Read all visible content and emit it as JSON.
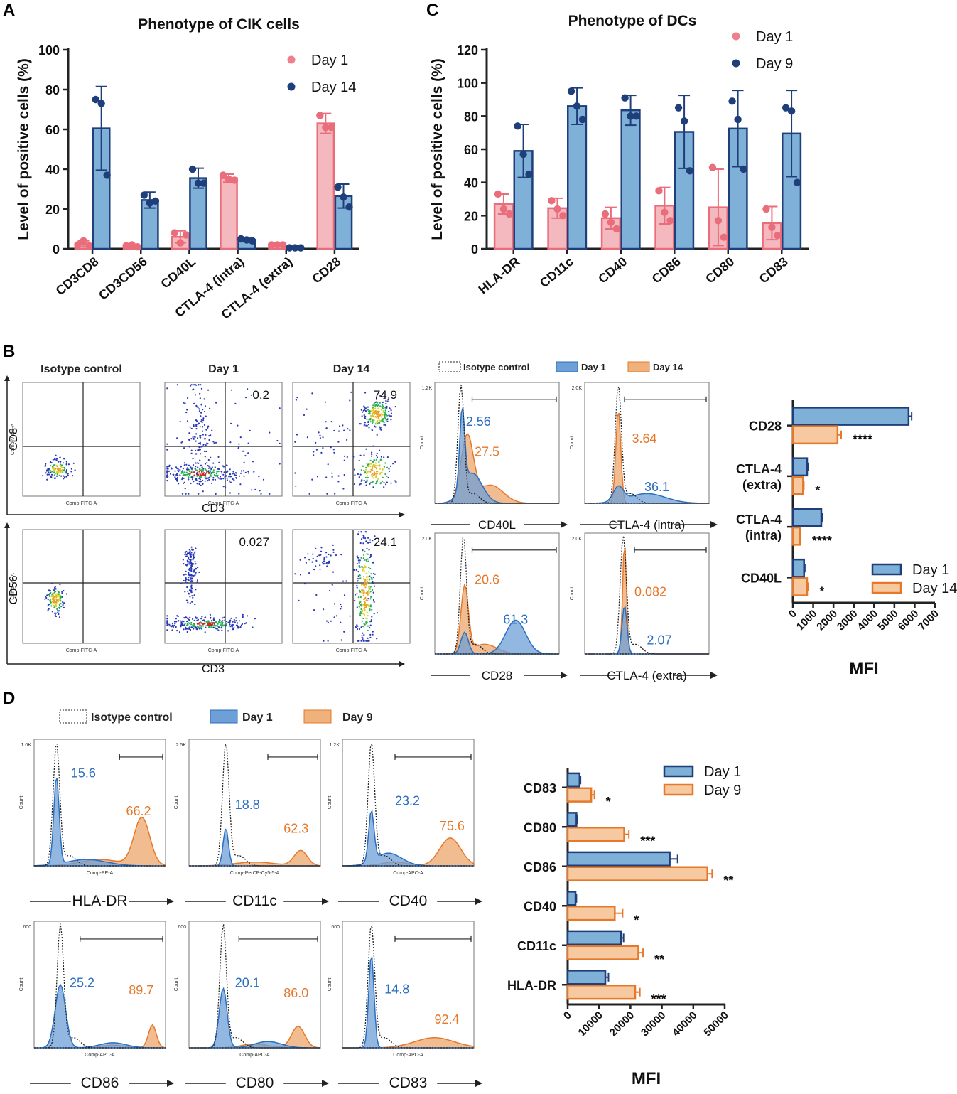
{
  "colors": {
    "day1_pink": "#f4b8bf",
    "day1_pink_edge": "#ea6d7b",
    "blue_fill": "#7fb0d8",
    "blue_edge": "#1f3f7a",
    "orange_fill": "#f6c9a1",
    "orange_edge": "#e6782a",
    "hist_blue": "#6e9fd6",
    "hist_orange": "#efb27c",
    "dot_blue": "#2a4fa0",
    "dot_orange": "#e37a2c"
  },
  "panel_labels": {
    "a": "A",
    "b": "B",
    "c": "C",
    "d": "D"
  },
  "flow": {
    "cik_density": [
      {
        "title": "Isotype control",
        "value": "",
        "xlabel": "Comp-FITC-A",
        "ylabel": "Comp-V450-A"
      },
      {
        "title": "Day 1",
        "value": "0.2",
        "xlabel": "Comp-FITC-A",
        "ylabel": ""
      },
      {
        "title": "Day 14",
        "value": "74.9",
        "xlabel": "Comp-FITC-A",
        "ylabel": ""
      },
      {
        "title": "",
        "value": "",
        "xlabel": "Comp-FITC-A",
        "ylabel": "Comp-PE-A"
      },
      {
        "title": "",
        "value": "0.027",
        "xlabel": "Comp-FITC-A",
        "ylabel": ""
      },
      {
        "title": "",
        "value": "24.1",
        "xlabel": "Comp-FITC-A",
        "ylabel": ""
      }
    ],
    "cik_axis_labels": {
      "x": "CD3",
      "y_top": "CD8",
      "y_bottom": "CD56"
    },
    "cik_hist_legend": {
      "iso": "Isotype control",
      "d1": "Day 1",
      "d2": "Day 14"
    },
    "cik_hist": [
      {
        "marker": "CD40L",
        "blue": "2.56",
        "orange": "27.5",
        "ymax": "1.2K"
      },
      {
        "marker": "CTLA-4 (intra)",
        "blue": "36.1",
        "orange": "3.64",
        "ymax": "2.0K"
      },
      {
        "marker": "CD28",
        "blue": "61.3",
        "orange": "20.6",
        "ymax": "2.0K"
      },
      {
        "marker": "CTLA-4 (extra)",
        "blue": "2.07",
        "orange": "0.082",
        "ymax": "2.0K"
      }
    ],
    "dc_hist_legend": {
      "iso": "Isotype control",
      "d1": "Day 1",
      "d2": "Day 9"
    },
    "dc_hist": [
      {
        "marker": "HLA-DR",
        "comp": "Comp-PE-A",
        "blue": "15.6",
        "orange": "66.2",
        "ymax": "1.0K"
      },
      {
        "marker": "CD11c",
        "comp": "Comp-PerCP-Cy5-5-A",
        "blue": "18.8",
        "orange": "62.3",
        "ymax": "2.5K"
      },
      {
        "marker": "CD40",
        "comp": "Comp-APC-A",
        "blue": "23.2",
        "orange": "75.6",
        "ymax": "1.2K"
      },
      {
        "marker": "CD86",
        "comp": "Comp-APC-A",
        "blue": "25.2",
        "orange": "89.7",
        "ymax": "600"
      },
      {
        "marker": "CD80",
        "comp": "Comp-APC-A",
        "blue": "20.1",
        "orange": "86.0",
        "ymax": "600"
      },
      {
        "marker": "CD83",
        "comp": "Comp-APC-A",
        "blue": "14.8",
        "orange": "92.4",
        "ymax": "600"
      }
    ],
    "count_label": "Count",
    "arrow_glyph": "→"
  },
  "chart_data": [
    {
      "id": "A",
      "type": "bar",
      "title": "Phenotype of CIK cells",
      "xlabel": "",
      "ylabel": "Level of positive cells (%)",
      "ylim": [
        0,
        100
      ],
      "yticks": [
        0,
        20,
        40,
        60,
        80,
        100
      ],
      "categories": [
        "CD3CD8",
        "CD3CD56",
        "CD40L",
        "CTLA-4 (intra)",
        "CTLA-4 (extra)",
        "CD28"
      ],
      "series": [
        {
          "name": "Day 1",
          "values": [
            2.5,
            1.5,
            6,
            35.5,
            2,
            63
          ],
          "err": [
            1.5,
            0.8,
            3,
            2,
            0.5,
            5
          ],
          "points": [
            [
              2,
              4,
              1.5
            ],
            [
              1.5,
              2,
              1
            ],
            [
              8,
              3,
              7
            ],
            [
              37,
              35,
              34.5
            ],
            [
              2,
              2,
              2
            ],
            [
              67,
              61,
              61
            ]
          ]
        },
        {
          "name": "Day 14",
          "values": [
            60.5,
            24.5,
            35.5,
            4.5,
            0.5,
            26.5
          ],
          "err": [
            21,
            4,
            5,
            0.8,
            0.3,
            6
          ],
          "points": [
            [
              75,
              73,
              37
            ],
            [
              27,
              23,
              24
            ],
            [
              40,
              33,
              33
            ],
            [
              5,
              4.5,
              4
            ],
            [
              0.5,
              0.5,
              0.5
            ],
            [
              31,
              26,
              21
            ]
          ]
        }
      ],
      "legend": "top-right"
    },
    {
      "id": "C",
      "type": "bar",
      "title": "Phenotype of  DCs",
      "xlabel": "",
      "ylabel": "Level of positive cells (%)",
      "ylim": [
        0,
        120
      ],
      "yticks": [
        0,
        20,
        40,
        60,
        80,
        100,
        120
      ],
      "categories": [
        "HLA-DR",
        "CD11c",
        "CD40",
        "CD86",
        "CD80",
        "CD83"
      ],
      "series": [
        {
          "name": "Day 1",
          "values": [
            27,
            24.5,
            18.5,
            26,
            25,
            15.5
          ],
          "err": [
            6,
            6,
            6.5,
            11,
            23,
            10
          ],
          "points": [
            [
              33,
              24,
              21
            ],
            [
              29,
              24,
              20
            ],
            [
              21,
              16,
              12
            ],
            [
              35,
              22,
              17
            ],
            [
              49,
              17,
              7
            ],
            [
              24,
              13,
              8
            ]
          ]
        },
        {
          "name": "Day 9",
          "values": [
            59,
            86,
            83.5,
            70.5,
            72.5,
            69.5
          ],
          "err": [
            16,
            11,
            9,
            22,
            23,
            26
          ],
          "points": [
            [
              74,
              57,
              45
            ],
            [
              95,
              86,
              78
            ],
            [
              91,
              80,
              80
            ],
            [
              85,
              77,
              47
            ],
            [
              89,
              78,
              48
            ],
            [
              85,
              83,
              40
            ]
          ]
        }
      ],
      "legend": "top-right"
    },
    {
      "id": "B-MFI",
      "type": "bar",
      "orientation": "horizontal",
      "xlabel": "MFI",
      "ylabel": "",
      "xlim": [
        0,
        7000
      ],
      "xticks": [
        0,
        1000,
        2000,
        3000,
        4000,
        5000,
        6000,
        7000
      ],
      "categories": [
        "CD28",
        "CTLA-4\n(extra)",
        "CTLA-4\n(intra)",
        "CD40L"
      ],
      "category_lines": [
        [
          "CD28"
        ],
        [
          "CTLA-4",
          "(extra)"
        ],
        [
          "CTLA-4",
          "(intra)"
        ],
        [
          "CD40L"
        ]
      ],
      "series": [
        {
          "name": "Day 1",
          "values": [
            5700,
            700,
            1400,
            550
          ],
          "err": [
            150,
            40,
            50,
            40
          ]
        },
        {
          "name": "Day 14",
          "values": [
            2200,
            500,
            350,
            700
          ],
          "err": [
            180,
            40,
            30,
            50
          ]
        }
      ],
      "significance": [
        "****",
        "*",
        "****",
        "*"
      ],
      "legend": "bottom-right"
    },
    {
      "id": "D-MFI",
      "type": "bar",
      "orientation": "horizontal",
      "xlabel": "MFI",
      "ylabel": "",
      "xlim": [
        0,
        50000
      ],
      "xticks": [
        0,
        10000,
        20000,
        30000,
        40000,
        50000
      ],
      "categories": [
        "CD83",
        "CD80",
        "CD86",
        "CD40",
        "CD11c",
        "HLA-DR"
      ],
      "series": [
        {
          "name": "Day 1",
          "values": [
            3800,
            2800,
            32500,
            2500,
            17000,
            12000
          ],
          "err": [
            300,
            300,
            2500,
            300,
            800,
            1000
          ]
        },
        {
          "name": "Day 9",
          "values": [
            7500,
            18000,
            44500,
            15000,
            22500,
            21500
          ],
          "err": [
            1000,
            1500,
            1500,
            2500,
            1500,
            1500
          ]
        }
      ],
      "significance": [
        "*",
        "***",
        "**",
        "*",
        "**",
        "***"
      ],
      "legend": "top-right"
    }
  ]
}
